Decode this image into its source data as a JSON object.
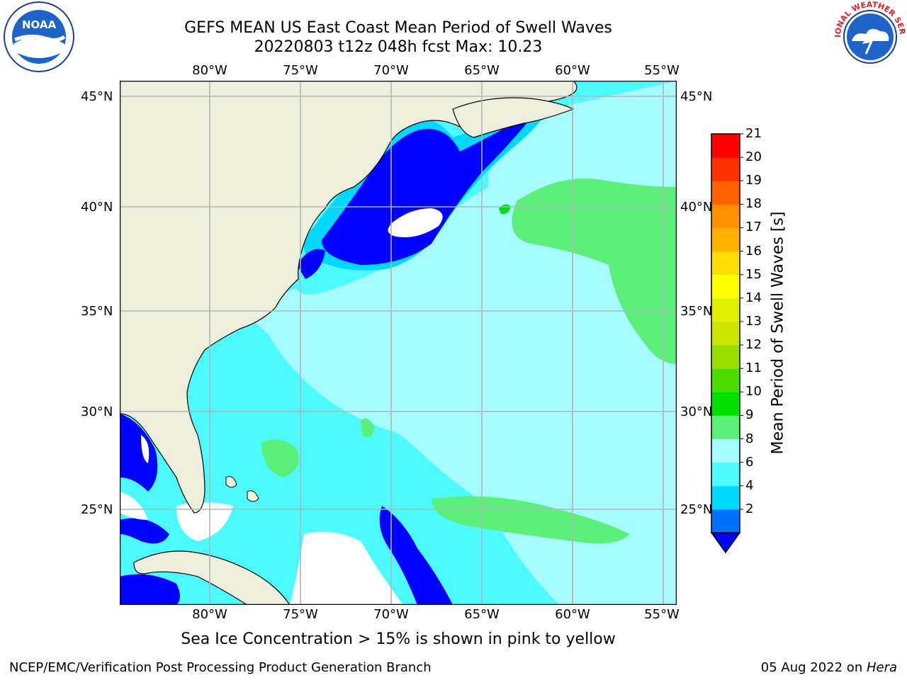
{
  "header": {
    "title_line1": "GEFS MEAN US East Coast Mean Period of Swell Waves",
    "title_line2": "20220803 t12z 048h fcst   Max: 10.23"
  },
  "logos": {
    "left": "noaa-logo",
    "left_text": "NOAA",
    "right": "nws-logo",
    "right_text": "NATIONAL WEATHER SERVICE"
  },
  "map": {
    "lon_labels": [
      "80°W",
      "75°W",
      "70°W",
      "65°W",
      "60°W",
      "55°W"
    ],
    "lat_labels": [
      "45°N",
      "40°N",
      "35°N",
      "30°N",
      "25°N"
    ],
    "colors": {
      "land": "#eeeedc",
      "ice_or_missing": "#ffffff",
      "period_2_4": "#0000ff",
      "period_4_6": "#00d8ff",
      "period_6_8": "#4dfbff",
      "period_8_9": "#a6fcff",
      "period_9_10": "#5cf07a",
      "period_10_11": "#00e000"
    }
  },
  "colorbar": {
    "title": "Mean Period of Swell Waves [s]",
    "ticks": [
      "21",
      "20",
      "19",
      "18",
      "17",
      "16",
      "15",
      "14",
      "13",
      "12",
      "11",
      "10",
      "9",
      "8",
      "6",
      "4",
      "2"
    ],
    "colors_bottom_to_top": [
      "#0070ff",
      "#00d8ff",
      "#4dfbff",
      "#a6fcff",
      "#5cf07a",
      "#00e000",
      "#4ddd00",
      "#99dd00",
      "#cce600",
      "#ddee00",
      "#ffff00",
      "#ffdd00",
      "#ffb000",
      "#ff9000",
      "#ff6000",
      "#ff3000",
      "#ff0000"
    ],
    "extend_color": "#0000ff"
  },
  "notes": {
    "sea_ice": "Sea Ice Concentration > 15% is shown in pink to yellow"
  },
  "footer": {
    "left": "NCEP/EMC/Verification Post Processing Product Generation Branch",
    "date": "05 Aug 2022 on ",
    "machine": "Hera"
  }
}
